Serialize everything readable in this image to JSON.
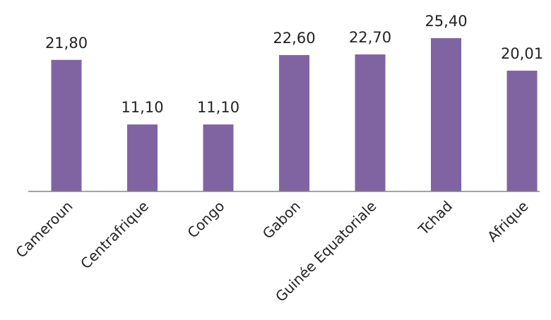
{
  "chart_data": {
    "type": "bar",
    "categories": [
      "Cameroun",
      "Centrafrique",
      "Congo",
      "Gabon",
      "Guinée Equatoriale",
      "Tchad",
      "Afrique"
    ],
    "values": [
      21.8,
      11.1,
      11.1,
      22.6,
      22.7,
      25.4,
      20.01
    ],
    "value_labels": [
      "21,80",
      "11,10",
      "11,10",
      "22,60",
      "22,70",
      "25,40",
      "20,01"
    ],
    "title": "",
    "xlabel": "",
    "ylabel": "",
    "ylim": [
      0,
      25.4
    ],
    "grid": false,
    "legend": "none",
    "bar_color": "#8064a2",
    "axis_color": "#868686",
    "text_color": "#222222"
  }
}
